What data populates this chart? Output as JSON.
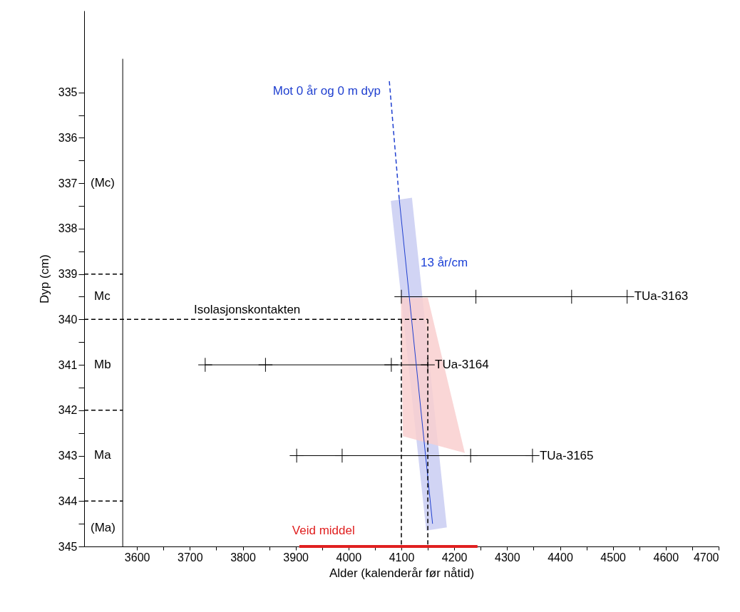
{
  "chart_data": {
    "type": "line",
    "xlabel": "Alder (kalenderår før nåtid)",
    "ylabel": "Dyp (cm)",
    "xlim": [
      3500,
      4700
    ],
    "ylim": [
      345,
      333.2
    ],
    "xticks": [
      3600,
      {
        "value": 3650,
        "label": null
      },
      3700,
      {
        "value": 3750,
        "label": null
      },
      3800,
      {
        "value": 3850,
        "label": null
      },
      3900,
      {
        "value": 3950,
        "label": null
      },
      4000,
      {
        "value": 4050,
        "label": null
      },
      4100,
      {
        "value": 4150,
        "label": null
      },
      4200,
      {
        "value": 4250,
        "label": null
      },
      4300,
      {
        "value": 4350,
        "label": null
      },
      4400,
      {
        "value": 4450,
        "label": null
      },
      4500,
      {
        "value": 4550,
        "label": null
      },
      4600,
      {
        "value": 4650,
        "label": null
      },
      4700
    ],
    "yticks": [
      335,
      {
        "value": 335.5,
        "label": null
      },
      336,
      {
        "value": 336.5,
        "label": null
      },
      337,
      {
        "value": 337.5,
        "label": null
      },
      338,
      {
        "value": 338.5,
        "label": null
      },
      339,
      {
        "value": 339.5,
        "label": null
      },
      340,
      {
        "value": 340.5,
        "label": null
      },
      341,
      {
        "value": 341.5,
        "label": null
      },
      342,
      {
        "value": 342.5,
        "label": null
      },
      343,
      {
        "value": 343.5,
        "label": null
      },
      344,
      {
        "value": 344.5,
        "label": null
      },
      345
    ],
    "grid": false,
    "series": [
      {
        "type": "area",
        "color": "#c9cdf2",
        "x": [
          4080,
          4120,
          4186,
          4147
        ],
        "values": [
          337.39,
          337.32,
          344.58,
          344.65
        ]
      },
      {
        "type": "area",
        "color": "#f9cfcf",
        "x": [
          4099,
          4150,
          4220,
          4103
        ],
        "values": [
          339.52,
          339.52,
          342.94,
          342.57
        ]
      },
      {
        "name": "TUa-3163",
        "color": "#000000",
        "marker": "cross",
        "x": [
          4100,
          4241,
          4422,
          4527
        ],
        "values": [
          339.5,
          339.5,
          339.5,
          339.5
        ]
      },
      {
        "name": "TUa-3164",
        "color": "#000000",
        "marker": "cross",
        "x": [
          3729,
          3843,
          4081,
          4150
        ],
        "values": [
          341,
          341,
          341,
          341
        ]
      },
      {
        "name": "TUa-3165",
        "color": "#000000",
        "marker": "cross",
        "x": [
          3902,
          3988,
          4231,
          4348
        ],
        "values": [
          343,
          343,
          343,
          343
        ]
      },
      {
        "color": "#2040d0",
        "line_style": "solid",
        "x": [
          4159,
          4096
        ],
        "values": [
          344.5,
          337.35
        ]
      },
      {
        "name": "Mot 0 år og 0 m dyp",
        "color": "#2040d0",
        "line_style": "dashed",
        "x": [
          4096,
          4077
        ],
        "values": [
          337.35,
          334.72
        ]
      },
      {
        "name": "Isolasjonskontakten",
        "color": "#000000",
        "line_style": "dashed",
        "x": [
          3500,
          4150
        ],
        "values": [
          340,
          340
        ]
      },
      {
        "color": "#000000",
        "line_style": "dashed",
        "x": [
          4100,
          4100
        ],
        "values": [
          340,
          345
        ]
      },
      {
        "color": "#000000",
        "line_style": "dashed",
        "x": [
          4150,
          4150
        ],
        "values": [
          340,
          345
        ]
      },
      {
        "name": "Veid middel",
        "color": "#e02020",
        "line_style": "solid",
        "x": [
          3907,
          4244
        ],
        "values": [
          345,
          345
        ]
      },
      {
        "color": "#000000",
        "line_style": "solid",
        "x": [
          3573,
          3573
        ],
        "values": [
          334.26,
          345
        ]
      },
      {
        "color": "#000000",
        "line_style": "dashed",
        "x": [
          3500,
          3573
        ],
        "values": [
          339,
          339
        ]
      },
      {
        "color": "#000000",
        "line_style": "dashed",
        "x": [
          3500,
          3573
        ],
        "values": [
          342,
          342
        ]
      },
      {
        "color": "#000000",
        "line_style": "dashed",
        "x": [
          3500,
          3573
        ],
        "values": [
          344,
          344
        ]
      }
    ],
    "annotations": [
      "13 år/cm",
      "(Mc)",
      "Mc",
      "Mb",
      "Ma",
      "(Ma)"
    ]
  }
}
